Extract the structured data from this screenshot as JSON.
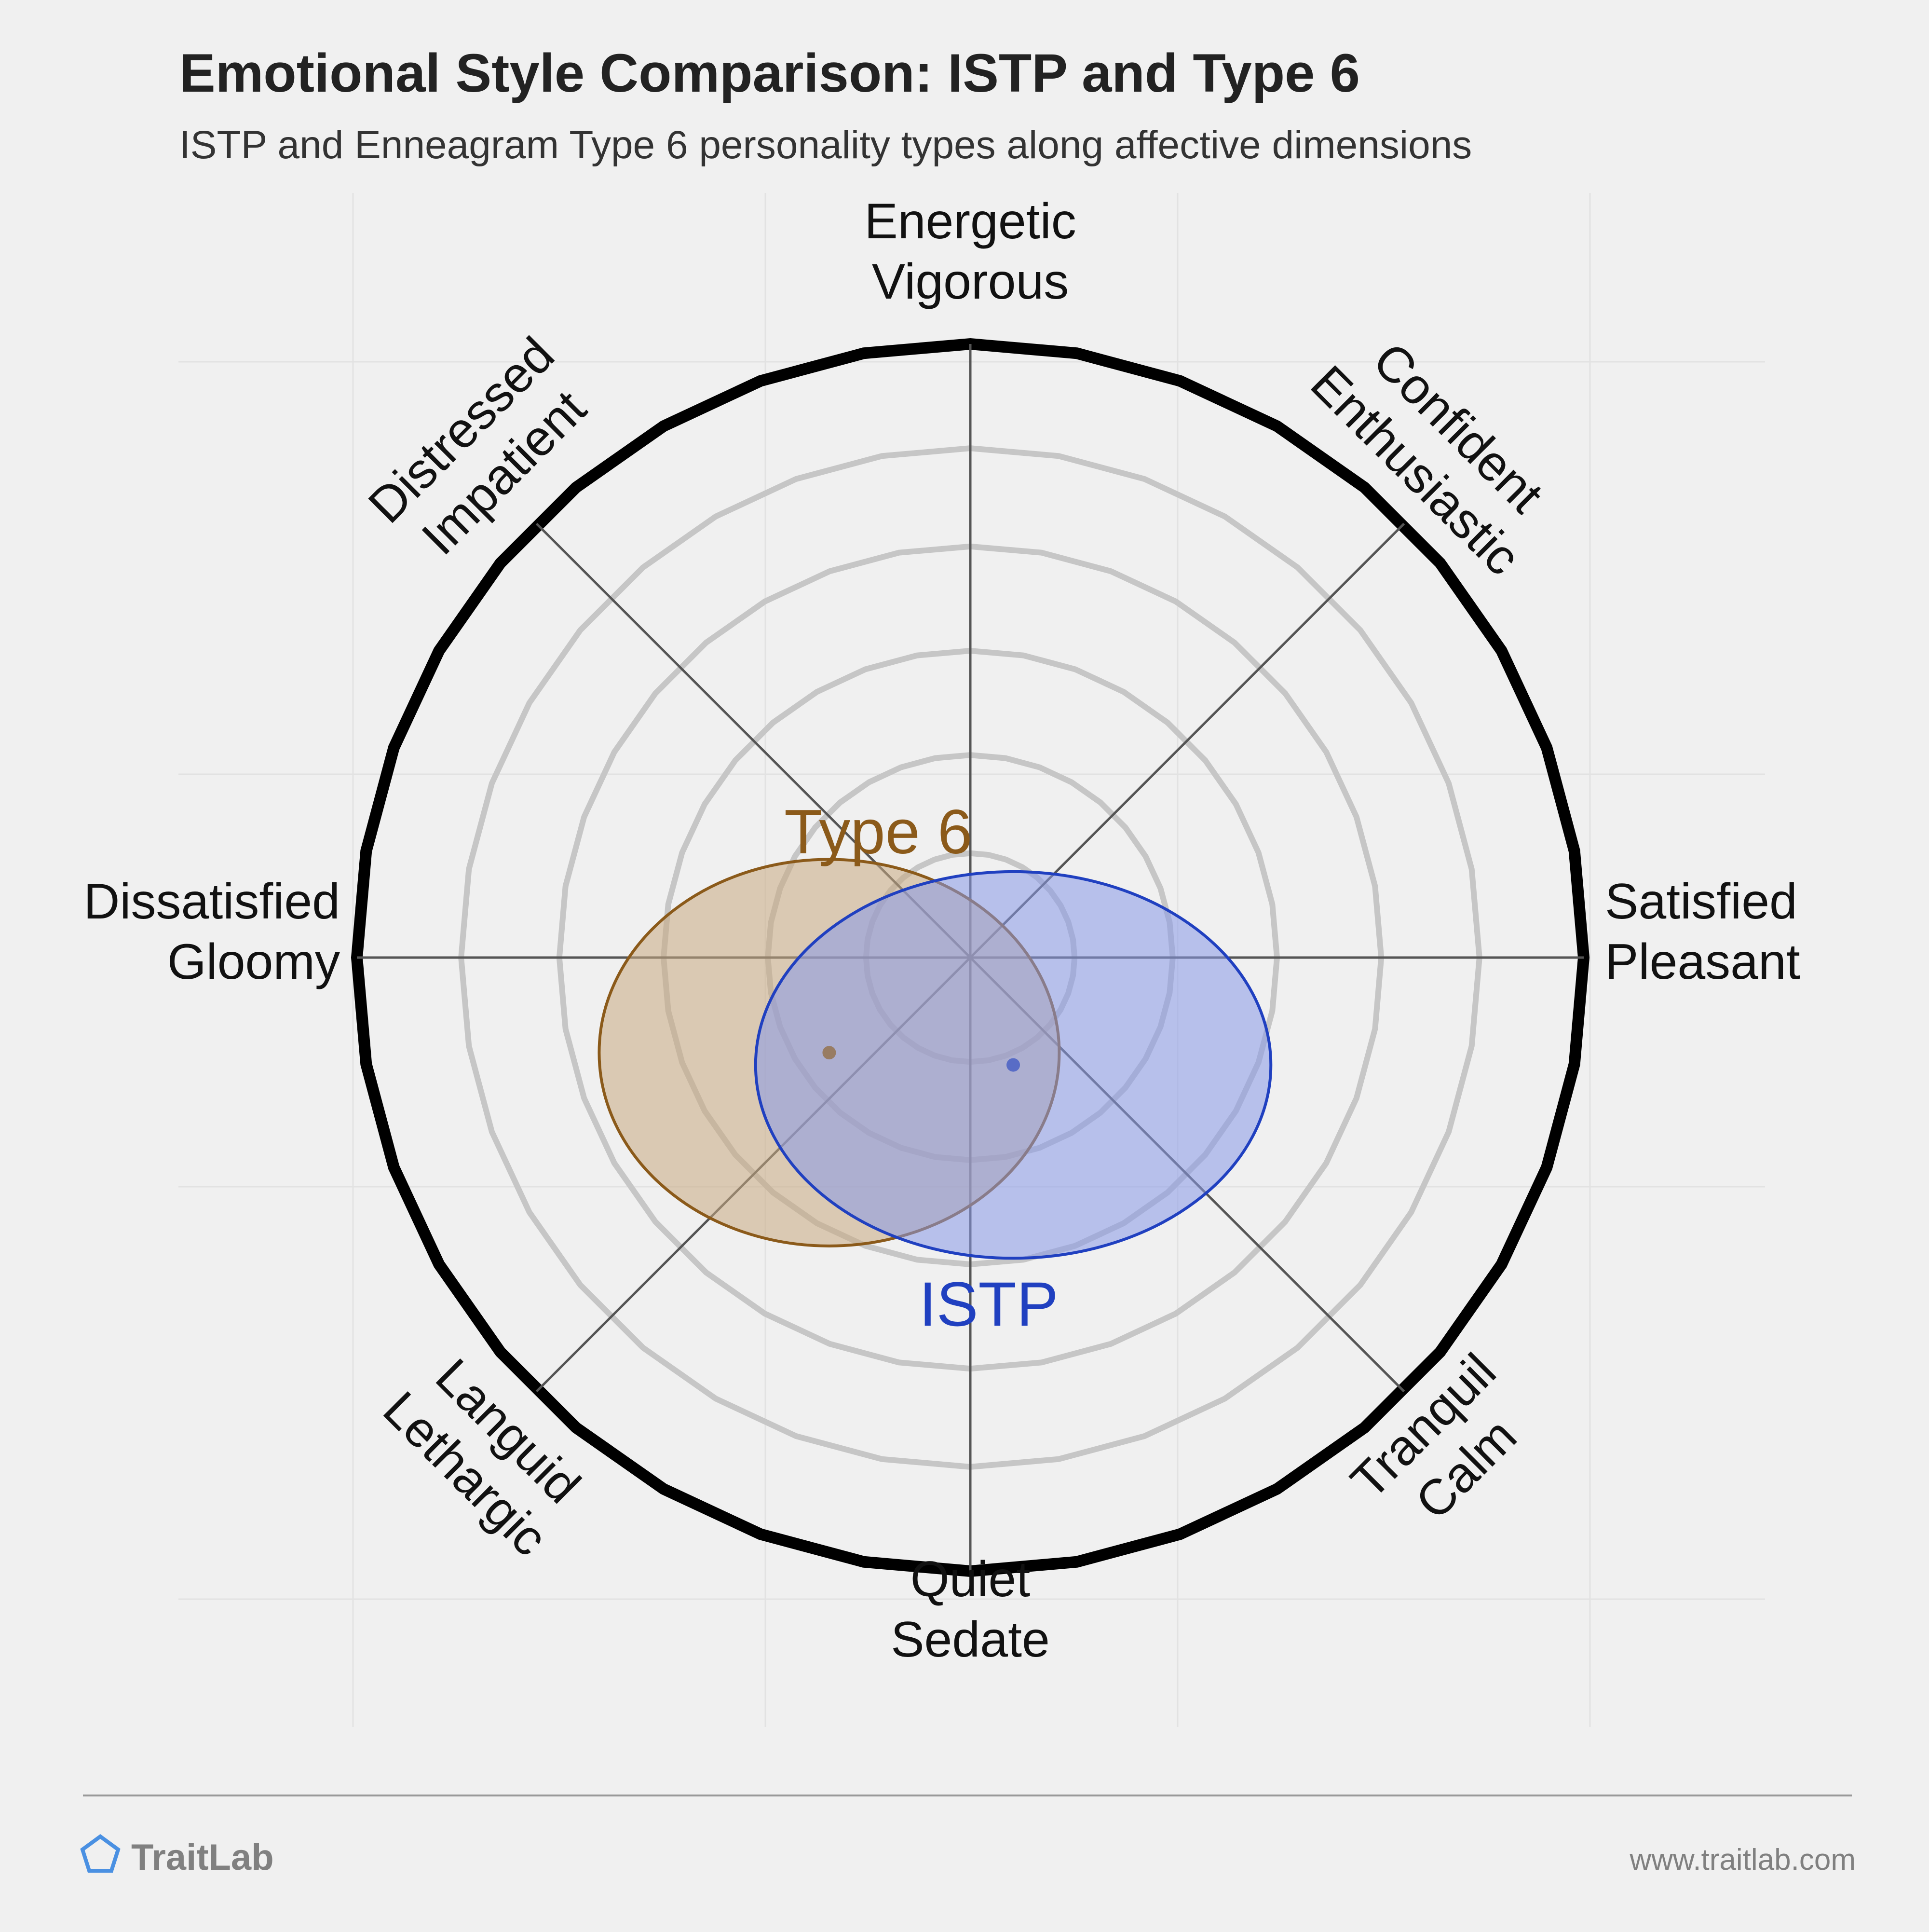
{
  "title": "Emotional Style Comparison: ISTP and Type 6",
  "subtitle": "ISTP and Enneagram Type 6 personality types along affective dimensions",
  "brand": {
    "name": "TraitLab",
    "icon": "pentagon-icon",
    "color": "#4a90e2"
  },
  "footer_url": "www.traitlab.com",
  "colors": {
    "background": "#f0f0f0",
    "axis": "#555555",
    "ring": "#c6c6c6",
    "outer_ring": "#000000"
  },
  "chart_data": {
    "type": "scatter",
    "coordinate_system": "polar circumplex",
    "x_axis": {
      "negative_label": [
        "Dissatisfied",
        "Gloomy"
      ],
      "positive_label": [
        "Satisfied",
        "Pleasant"
      ],
      "range": [
        -1,
        1
      ]
    },
    "y_axis": {
      "negative_label": [
        "Quiet",
        "Sedate"
      ],
      "positive_label": [
        "Energetic",
        "Vigorous"
      ],
      "range": [
        -1,
        1
      ]
    },
    "ring_levels": [
      0.17,
      0.33,
      0.5,
      0.67,
      0.83,
      1.0
    ],
    "grid": true,
    "axes": [
      {
        "label": [
          "Energetic",
          "Vigorous"
        ],
        "angle_deg": 90
      },
      {
        "label": [
          "Confident",
          "Enthusiastic"
        ],
        "angle_deg": 45
      },
      {
        "label": [
          "Satisfied",
          "Pleasant"
        ],
        "angle_deg": 0
      },
      {
        "label": [
          "Tranquil",
          "Calm"
        ],
        "angle_deg": -45
      },
      {
        "label": [
          "Quiet",
          "Sedate"
        ],
        "angle_deg": -90
      },
      {
        "label": [
          "Languid",
          "Lethargic"
        ],
        "angle_deg": -135
      },
      {
        "label": [
          "Dissatisfied",
          "Gloomy"
        ],
        "angle_deg": 180
      },
      {
        "label": [
          "Distressed",
          "Impatient"
        ],
        "angle_deg": 135
      }
    ],
    "series": [
      {
        "name": "Type 6",
        "color": "#8b5a1a",
        "fill": "#c9a982",
        "center": {
          "x": -0.23,
          "y": -0.155
        },
        "radius": {
          "x": 0.375,
          "y": 0.315
        }
      },
      {
        "name": "ISTP",
        "color": "#2040c0",
        "fill": "#8899e8",
        "center": {
          "x": 0.07,
          "y": -0.175
        },
        "radius": {
          "x": 0.42,
          "y": 0.315
        }
      }
    ]
  }
}
